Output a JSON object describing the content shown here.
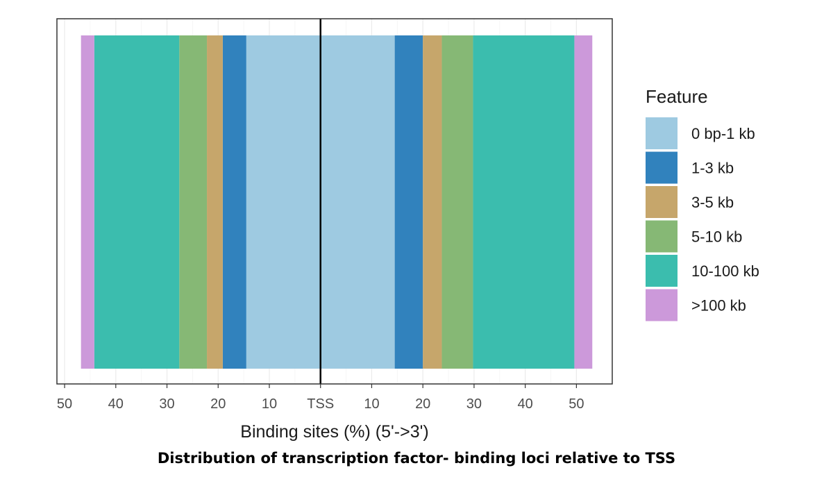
{
  "caption": "Distribution of transcription factor- binding loci relative to TSS",
  "chart_data": {
    "type": "bar",
    "orientation": "horizontal-stacked-diverging",
    "xlabel": "Binding sites (%) (5'->3')",
    "x_tick_labels": [
      "50",
      "40",
      "30",
      "20",
      "10",
      "TSS",
      "10",
      "20",
      "30",
      "40",
      "50"
    ],
    "x_tick_values": [
      -50,
      -40,
      -30,
      -20,
      -10,
      0,
      10,
      20,
      30,
      40,
      50
    ],
    "xlim": [
      -51.5,
      57
    ],
    "grid": true,
    "legend": {
      "title": "Feature",
      "position": "right"
    },
    "series": [
      {
        "name": "0 bp-1 kb",
        "color": "#9ECAE1",
        "upstream": 14.5,
        "downstream": 14.5
      },
      {
        "name": "1-3 kb",
        "color": "#3182BD",
        "upstream": 4.6,
        "downstream": 5.5
      },
      {
        "name": "3-5 kb",
        "color": "#C6A66B",
        "upstream": 3.1,
        "downstream": 3.7
      },
      {
        "name": "5-10 kb",
        "color": "#86B875",
        "upstream": 5.4,
        "downstream": 6.1
      },
      {
        "name": "10-100 kb",
        "color": "#3BBDAE",
        "upstream": 16.6,
        "downstream": 19.8
      },
      {
        "name": ">100 kb",
        "color": "#CC99DA",
        "upstream": 2.6,
        "downstream": 3.5
      }
    ]
  }
}
